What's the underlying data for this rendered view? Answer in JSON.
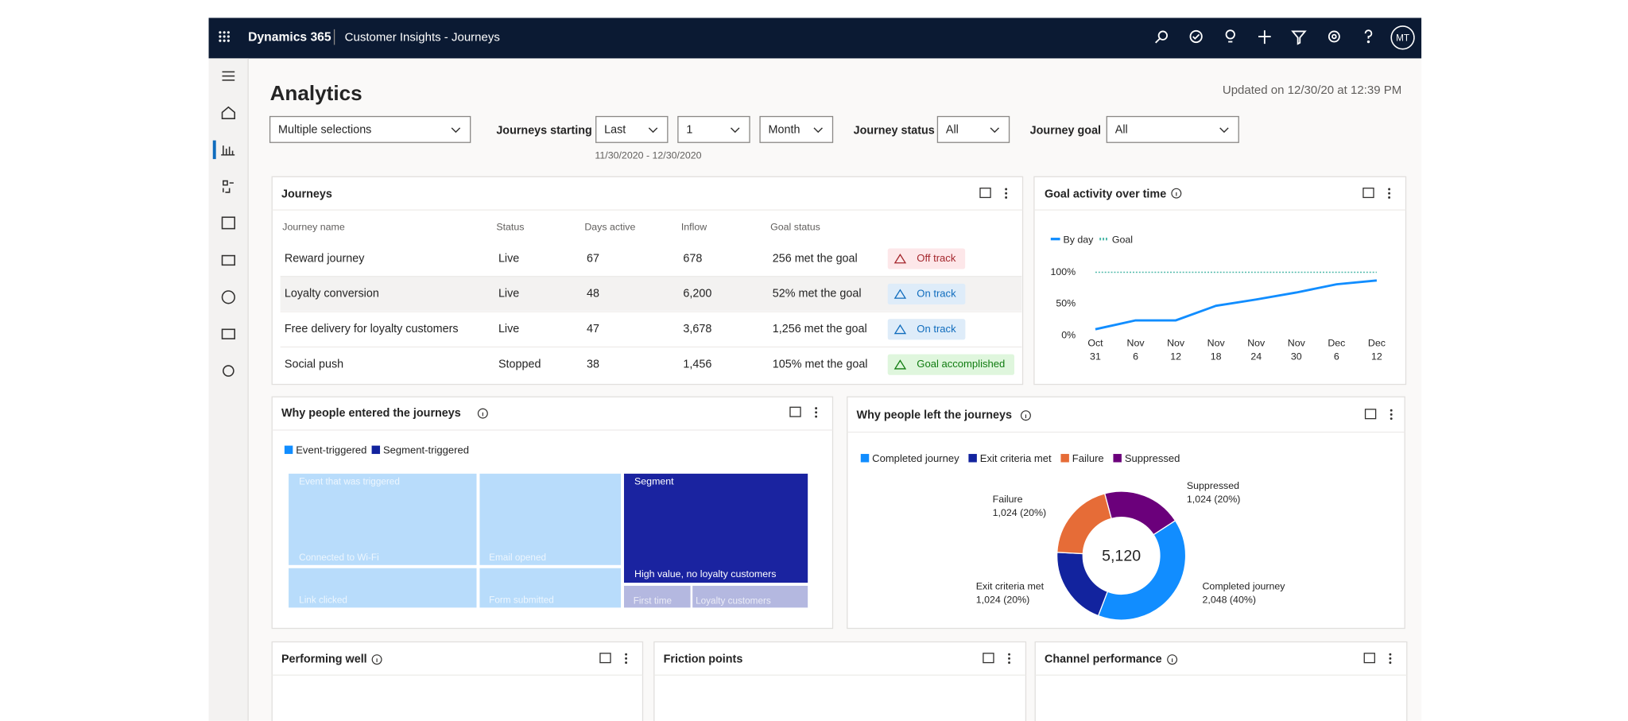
{
  "header": {
    "brand": "Dynamics 365",
    "app": "Customer Insights - Journeys",
    "avatar": "MT"
  },
  "page": {
    "title": "Analytics",
    "updated": "Updated on 12/30/20 at 12:39 PM"
  },
  "filters": {
    "segments": "Multiple selections",
    "journeys_starting_label": "Journeys starting",
    "period": "Last",
    "count": "1",
    "unit": "Month",
    "date_range": "11/30/2020 - 12/30/2020",
    "status_label": "Journey status",
    "status": "All",
    "goal_label": "Journey goal",
    "goal": "All"
  },
  "journeys": {
    "title": "Journeys",
    "columns": [
      "Journey name",
      "Status",
      "Days active",
      "Inflow",
      "Goal status"
    ],
    "rows": [
      [
        "Reward journey",
        "Live",
        "67",
        "678",
        "256 met the goal",
        "Off track"
      ],
      [
        "Loyalty conversion",
        "Live",
        "48",
        "6,200",
        "52% met the goal",
        "On track"
      ],
      [
        "Free delivery for loyalty customers",
        "Live",
        "47",
        "3,678",
        "1,256 met the goal",
        "On track"
      ],
      [
        "Social push",
        "Stopped",
        "38",
        "1,456",
        "105% met the goal",
        "Goal accomplished"
      ]
    ]
  },
  "goal_activity": {
    "title": "Goal activity over time",
    "chart_data": {
      "type": "line",
      "categories": [
        "Oct 31",
        "Nov 6",
        "Nov 12",
        "Nov 18",
        "Nov 24",
        "Nov 30",
        "Dec 6",
        "Dec 12"
      ],
      "series": [
        {
          "name": "By day",
          "color": "#118dff",
          "values": [
            10,
            24,
            24,
            47,
            57,
            68,
            81,
            87
          ]
        },
        {
          "name": "Goal",
          "color": "#4cb8a8",
          "values": [
            100,
            100,
            100,
            100,
            100,
            100,
            100,
            100
          ]
        }
      ],
      "ylim": [
        0,
        100
      ],
      "yticks": [
        {
          "value": 0,
          "label": "0%"
        },
        {
          "value": 50,
          "label": "50%"
        },
        {
          "value": 100,
          "label": "100%"
        }
      ]
    }
  },
  "entered": {
    "title": "Why people entered the journeys",
    "legend": [
      "Event-triggered",
      "Segment-triggered"
    ],
    "cells": [
      "Event that was triggered",
      "Connected to Wi-Fi",
      "Link clicked",
      "Email opened",
      "Form submitted",
      "Segment",
      "High value, no loyalty customers",
      "First time",
      "Loyalty customers"
    ]
  },
  "left": {
    "title": "Why people left the journeys",
    "chart_data": {
      "type": "pie",
      "total_label": "5,120",
      "series": [
        {
          "name": "Completed journey",
          "color": "#118dff",
          "value": 2048,
          "value_label": "2,048 (40%)"
        },
        {
          "name": "Exit criteria met",
          "color": "#12239e",
          "value": 1024,
          "value_label": "1,024 (20%)"
        },
        {
          "name": "Failure",
          "color": "#e66c37",
          "value": 1024,
          "value_label": "1,024 (20%)"
        },
        {
          "name": "Suppressed",
          "color": "#6b007b",
          "value": 1024,
          "value_label": "1,024 (20%)"
        }
      ]
    }
  },
  "bottom": [
    "Performing well",
    "Friction points",
    "Channel performance"
  ]
}
